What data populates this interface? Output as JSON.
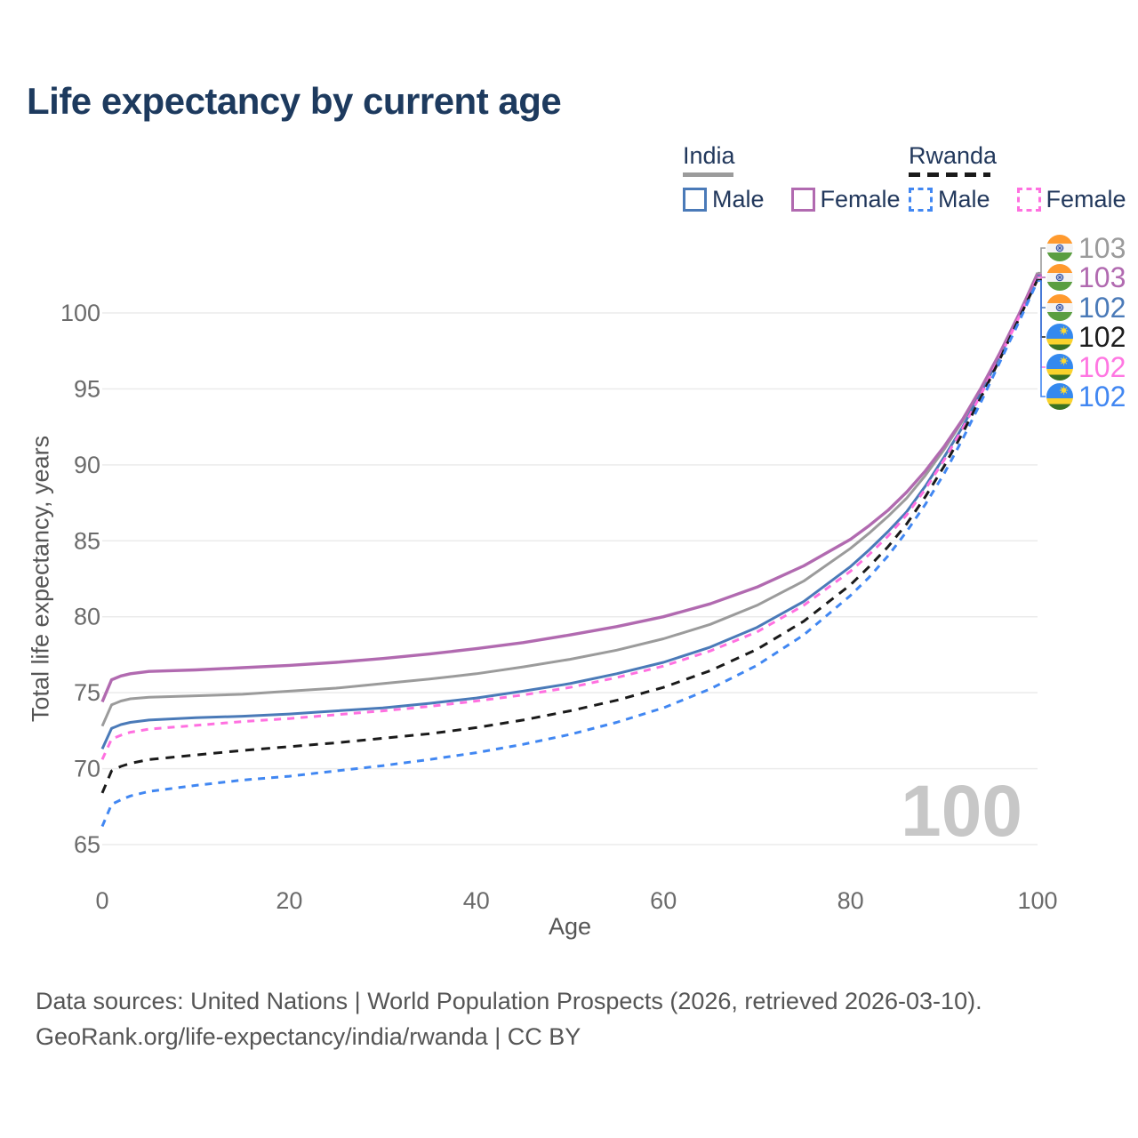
{
  "title": "Life expectancy by current age",
  "legend": {
    "india": {
      "heading": "India",
      "male": "Male",
      "female": "Female"
    },
    "rwanda": {
      "heading": "Rwanda",
      "male": "Male",
      "female": "Female"
    }
  },
  "chart_data": {
    "type": "line",
    "title": "Life expectancy by current age",
    "xlabel": "Age",
    "ylabel": "Total life expectancy, years",
    "xlim": [
      0,
      100
    ],
    "ylim": [
      65,
      100
    ],
    "xticks": [
      0,
      20,
      40,
      60,
      80,
      100
    ],
    "yticks": [
      65,
      70,
      75,
      80,
      85,
      90,
      95,
      100
    ],
    "grid": "horizontal",
    "x": [
      0,
      1,
      2,
      3,
      5,
      10,
      15,
      20,
      25,
      30,
      35,
      40,
      45,
      50,
      55,
      60,
      65,
      70,
      75,
      80,
      82,
      84,
      86,
      88,
      90,
      92,
      94,
      96,
      98,
      100
    ],
    "series": [
      {
        "name": "India",
        "country": "India",
        "sex": "all",
        "color": "#9b9b9b",
        "style": "solid",
        "dash": "",
        "width": 3,
        "row": 0,
        "end_label": "103",
        "values": [
          72.8,
          74.2,
          74.45,
          74.6,
          74.7,
          74.8,
          74.9,
          75.1,
          75.3,
          75.6,
          75.9,
          76.25,
          76.7,
          77.2,
          77.8,
          78.55,
          79.5,
          80.75,
          82.35,
          84.5,
          85.5,
          86.6,
          87.8,
          89.3,
          91.0,
          92.9,
          95.0,
          97.4,
          99.9,
          102.65
        ]
      },
      {
        "name": "India Male",
        "country": "India",
        "sex": "male",
        "color": "#4a7ab8",
        "style": "solid",
        "dash": "",
        "width": 3,
        "row": 2,
        "end_label": "102",
        "values": [
          71.3,
          72.65,
          72.9,
          73.05,
          73.2,
          73.35,
          73.45,
          73.6,
          73.8,
          74.0,
          74.3,
          74.65,
          75.1,
          75.6,
          76.25,
          77.0,
          78.0,
          79.3,
          81.0,
          83.3,
          84.4,
          85.6,
          86.9,
          88.6,
          90.5,
          92.5,
          94.8,
          97.2,
          99.8,
          102.45
        ]
      },
      {
        "name": "India Female",
        "country": "India",
        "sex": "female",
        "color": "#b16ab0",
        "style": "solid",
        "dash": "",
        "width": 3.4,
        "row": 1,
        "end_label": "103",
        "values": [
          74.4,
          75.85,
          76.1,
          76.25,
          76.4,
          76.5,
          76.65,
          76.8,
          77.0,
          77.25,
          77.55,
          77.9,
          78.3,
          78.8,
          79.35,
          80.0,
          80.85,
          81.95,
          83.35,
          85.1,
          86.0,
          87.0,
          88.2,
          89.6,
          91.2,
          93.0,
          95.1,
          97.4,
          99.9,
          102.55
        ]
      },
      {
        "name": "Rwanda Female",
        "country": "Rwanda",
        "sex": "female",
        "color": "#ff70e0",
        "style": "dashed",
        "dash": "8 7",
        "width": 3,
        "row": 4,
        "end_label": "102",
        "values": [
          70.6,
          71.95,
          72.2,
          72.4,
          72.6,
          72.85,
          73.1,
          73.3,
          73.55,
          73.8,
          74.1,
          74.45,
          74.85,
          75.35,
          76.0,
          76.75,
          77.75,
          79.0,
          80.75,
          83.0,
          84.1,
          85.3,
          86.7,
          88.4,
          90.3,
          92.4,
          94.7,
          97.1,
          99.7,
          102.35
        ]
      },
      {
        "name": "Rwanda",
        "country": "Rwanda",
        "sex": "all",
        "color": "#1a1a1a",
        "style": "dashed",
        "dash": "10 8",
        "width": 3,
        "row": 3,
        "end_label": "102",
        "values": [
          68.4,
          69.85,
          70.15,
          70.35,
          70.6,
          70.9,
          71.2,
          71.45,
          71.7,
          72.0,
          72.3,
          72.7,
          73.2,
          73.8,
          74.5,
          75.35,
          76.45,
          77.85,
          79.7,
          82.1,
          83.3,
          84.6,
          86.1,
          87.9,
          89.9,
          92.1,
          94.5,
          97.0,
          99.6,
          102.2
        ]
      },
      {
        "name": "Rwanda Male",
        "country": "Rwanda",
        "sex": "male",
        "color": "#4187f2",
        "style": "dashed",
        "dash": "8 7",
        "width": 3,
        "row": 5,
        "end_label": "102",
        "values": [
          66.2,
          67.65,
          67.95,
          68.2,
          68.5,
          68.9,
          69.25,
          69.5,
          69.85,
          70.2,
          70.6,
          71.05,
          71.6,
          72.25,
          73.05,
          74.0,
          75.25,
          76.8,
          78.8,
          81.4,
          82.6,
          84.0,
          85.6,
          87.4,
          89.4,
          91.7,
          94.2,
          96.8,
          99.4,
          102.1
        ]
      }
    ]
  },
  "end_labels": {
    "rows": [
      {
        "value": "103",
        "color": "#9b9b9b",
        "flag": "india"
      },
      {
        "value": "103",
        "color": "#b16ab0",
        "flag": "india"
      },
      {
        "value": "102",
        "color": "#4a7ab8",
        "flag": "india"
      },
      {
        "value": "102",
        "color": "#1d1d1d",
        "flag": "rwanda"
      },
      {
        "value": "102",
        "color": "#ff77e2",
        "flag": "rwanda"
      },
      {
        "value": "102",
        "color": "#4187f2",
        "flag": "rwanda"
      }
    ]
  },
  "watermark": "100",
  "footer": {
    "line1": "Data sources: United Nations | World Population Prospects (2026, retrieved 2026-03-10).",
    "line2": "GeoRank.org/life-expectancy/india/rwanda | CC BY"
  }
}
